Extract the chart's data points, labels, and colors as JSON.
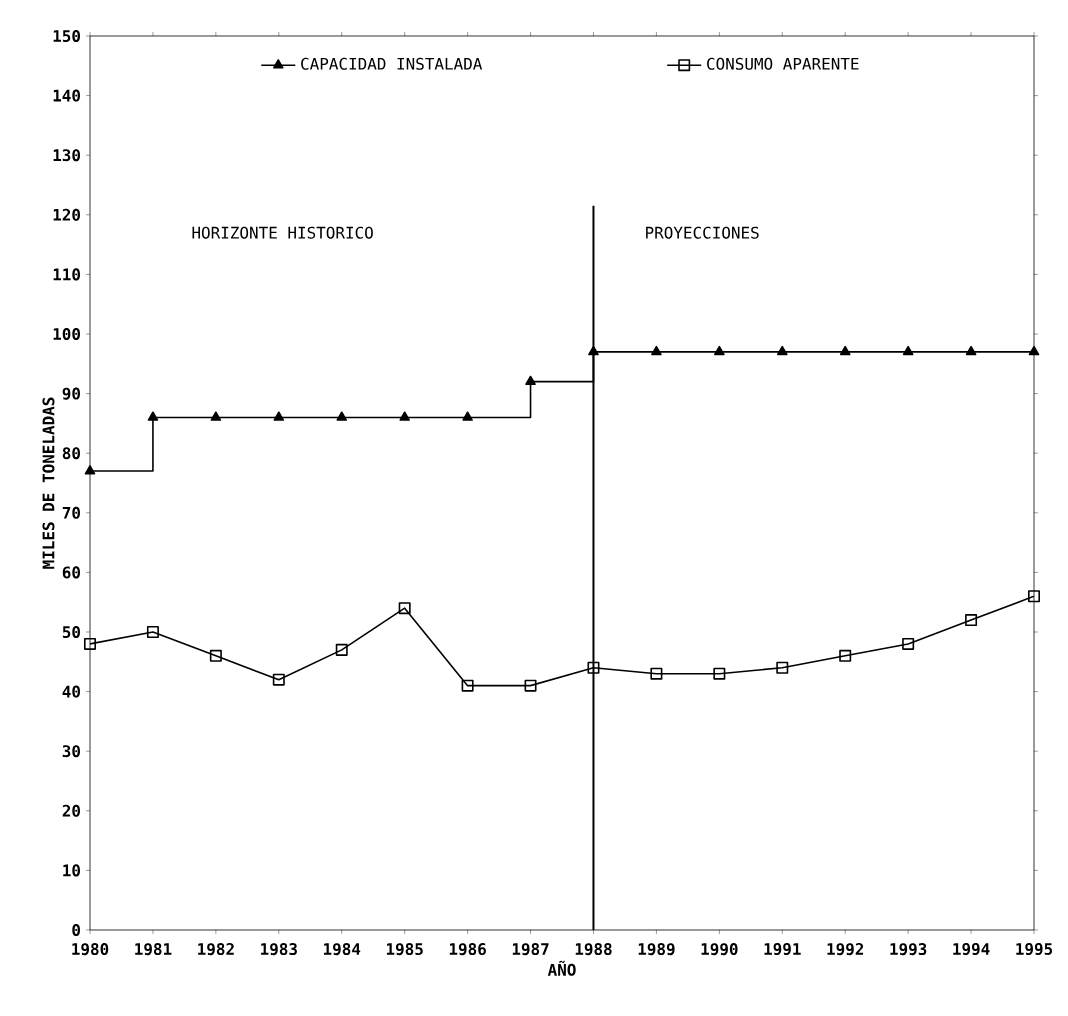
{
  "chart_data": {
    "type": "line",
    "xlabel": "AÑO",
    "ylabel": "MILES DE TONELADAS",
    "x": [
      1980,
      1981,
      1982,
      1983,
      1984,
      1985,
      1986,
      1987,
      1988,
      1989,
      1990,
      1991,
      1992,
      1993,
      1994,
      1995
    ],
    "series": [
      {
        "name": "CAPACIDAD INSTALADA",
        "type": "step",
        "marker": "triangle",
        "color": "#000000",
        "values": [
          77,
          86,
          86,
          86,
          86,
          86,
          86,
          92,
          97,
          97,
          97,
          97,
          97,
          97,
          97,
          97
        ]
      },
      {
        "name": "CONSUMO APARENTE",
        "marker": "square",
        "color": "#000000",
        "values": [
          48,
          50,
          46,
          42,
          47,
          54,
          41,
          41,
          44,
          43,
          43,
          44,
          46,
          48,
          52,
          56
        ]
      }
    ],
    "xlim": [
      1980,
      1995
    ],
    "xticks": [
      1980,
      1981,
      1982,
      1983,
      1984,
      1985,
      1986,
      1987,
      1988,
      1989,
      1990,
      1991,
      1992,
      1993,
      1994,
      1995
    ],
    "ylim": [
      0,
      150
    ],
    "yticks": [
      0,
      10,
      20,
      30,
      40,
      50,
      60,
      70,
      80,
      90,
      100,
      110,
      120,
      130,
      140,
      150
    ],
    "ref_lines": [
      {
        "axis": "x",
        "value": 1988,
        "color": "#000000"
      }
    ],
    "annotations": [
      "HORIZONTE HISTORICO",
      "PROYECCIONES"
    ],
    "legend": "top",
    "grid": false
  }
}
